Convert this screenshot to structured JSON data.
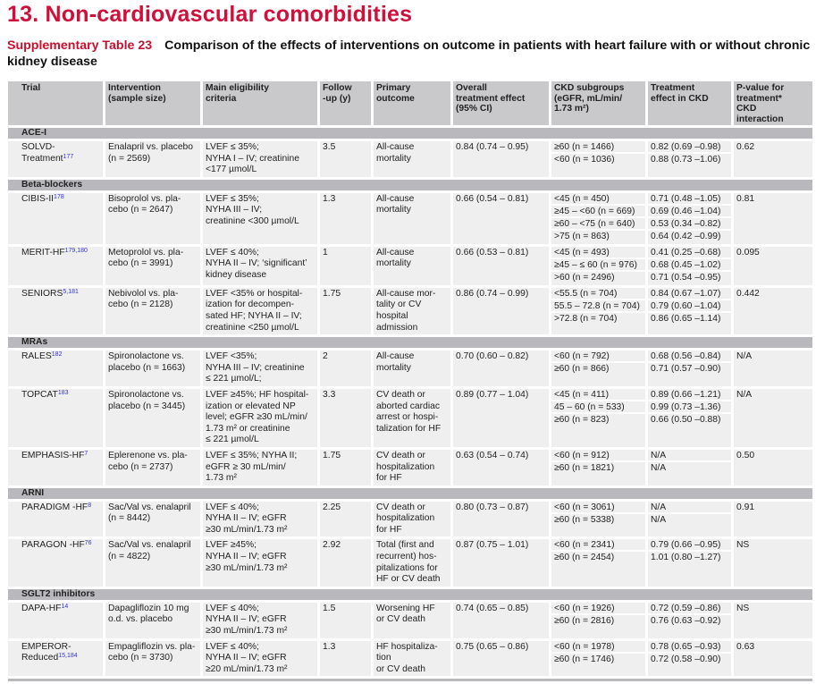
{
  "heading": "13. Non-cardiovascular comorbidities",
  "caption": {
    "label": "Supplementary Table 23",
    "text": "Comparison of the effects of interventions on outcome in patients with heart failure with or without chronic kidney disease"
  },
  "columns": [
    "Trial",
    "Intervention\n(sample size)",
    "Main eligibility\ncriteria",
    "Follow\n-up (y)",
    "Primary\noutcome",
    "Overall\ntreatment effect\n(95% CI)",
    "CKD subgroups\n(eGFR, mL/min/\n1.73 m²)",
    "Treatment\neffect in CKD",
    "P-value for\ntreatment*\nCKD\ninteraction"
  ],
  "sections": [
    {
      "name": "ACE-I",
      "rows": [
        {
          "trial": "SOLVD-\nTreatment",
          "ref": "177",
          "intervention": "Enalapril vs. placebo\n(n = 2569)",
          "criteria": "LVEF ≤ 35%;\nNYHA I – IV; creatinine\n<177 µmol/L",
          "followup": "3.5",
          "outcome": "All-cause\nmortality",
          "overall": "0.84 (0.74 – 0.95)",
          "subgroups": [
            "≥60 (n = 1466)",
            "<60 (n = 1036)"
          ],
          "effects": [
            "0.82 (0.69 –0.98)",
            "0.88 (0.73 –1.06)"
          ],
          "p": "0.62"
        }
      ]
    },
    {
      "name": "Beta-blockers",
      "rows": [
        {
          "trial": "CIBIS-II",
          "ref": "178",
          "intervention": "Bisoprolol vs. pla-\ncebo (n = 2647)",
          "criteria": "LVEF ≤ 35%;\nNYHA III – IV;\ncreatinine <300 µmol/L",
          "followup": "1.3",
          "outcome": "All-cause\nmortality",
          "overall": "0.66 (0.54 – 0.81)",
          "subgroups": [
            "<45 (n = 450)",
            "≥45 – <60 (n = 669)",
            "≥60 – <75 (n = 640)",
            ">75 (n = 863)"
          ],
          "effects": [
            "0.71 (0.48 –1.05)",
            "0.69 (0.46 –1.04)",
            "0.53 (0.34 –0.82)",
            "0.64 (0.42 –0.99)"
          ],
          "p": "0.81"
        },
        {
          "trial": "MERIT-HF",
          "ref": "179,180",
          "intervention": "Metoprolol vs. pla-\ncebo (n = 3991)",
          "criteria": "LVEF ≤ 40%;\nNYHA II – IV; ‘significant’\nkidney disease",
          "followup": "1",
          "outcome": "All-cause\nmortality",
          "overall": "0.66 (0.53 – 0.81)",
          "subgroups": [
            "<45 (n = 493)",
            "≥45 – ≤ 60 (n = 976)",
            ">60 (n = 2496)"
          ],
          "effects": [
            "0.41 (0.25 –0.68)",
            "0.68 (0.45 –1.02)",
            "0.71 (0.54 –0.95)"
          ],
          "p": "0.095"
        },
        {
          "trial": "SENIORS",
          "ref": "5,181",
          "intervention": "Nebivolol vs. pla-\ncebo (n = 2128)",
          "criteria": "LVEF <35% or hospital-\nization for decompen-\nsated HF; NYHA II – IV;\ncreatinine <250 µmol/L",
          "followup": "1.75",
          "outcome": "All-cause mor-\ntality or CV\nhospital\nadmission",
          "overall": "0.86 (0.74 – 0.99)",
          "subgroups": [
            "<55.5 (n = 704)",
            "55.5 – 72.8 (n = 704)",
            ">72.8 (n = 704)"
          ],
          "effects": [
            "0.84 (0.67 –1.07)",
            "0.79 (0.60 –1.04)",
            "0.86 (0.65 –1.14)"
          ],
          "p": "0.442"
        }
      ]
    },
    {
      "name": "MRAs",
      "rows": [
        {
          "trial": "RALES",
          "ref": "182",
          "intervention": "Spironolactone vs.\nplacebo (n = 1663)",
          "criteria": "LVEF <35%;\nNYHA III – IV; creatinine\n≤ 221 µmol/L;",
          "followup": "2",
          "outcome": "All-cause\nmortality",
          "overall": "0.70 (0.60 – 0.82)",
          "subgroups": [
            "<60 (n = 792)",
            "≥60 (n = 866)"
          ],
          "effects": [
            "0.68 (0.56 –0.84)",
            "0.71 (0.57 –0.90)"
          ],
          "p": "N/A"
        },
        {
          "trial": "TOPCAT",
          "ref": "183",
          "intervention": "Spironolactone vs.\nplacebo (n = 3445)",
          "criteria": "LVEF ≥45%; HF hospital-\nization or elevated NP\nlevel; eGFR ≥30 mL/min/\n1.73 m² or creatinine\n≤ 221 µmol/L",
          "followup": "3.3",
          "outcome": "CV death or\naborted cardiac\narrest or hospi-\ntalization for HF",
          "overall": "0.89 (0.77 – 1.04)",
          "subgroups": [
            "<45 (n = 411)",
            "45 – 60 (n = 533)",
            "≥60 (n = 823)"
          ],
          "effects": [
            "0.89 (0.66 –1.21)",
            "0.99 (0.73 –1.36)",
            "0.66 (0.50 –0.88)"
          ],
          "p": "N/A"
        },
        {
          "trial": "EMPHASIS-HF",
          "ref": "7",
          "intervention": "Eplerenone vs. pla-\ncebo (n = 2737)",
          "criteria": "LVEF ≤ 35%; NYHA II;\neGFR ≥ 30 mL/min/\n1.73 m²",
          "followup": "1.75",
          "outcome": "CV death or\nhospitalization\nfor HF",
          "overall": "0.63 (0.54 – 0.74)",
          "subgroups": [
            "<60 (n = 912)",
            "≥60 (n = 1821)"
          ],
          "effects": [
            "N/A",
            "N/A"
          ],
          "p": "0.50"
        }
      ]
    },
    {
      "name": "ARNI",
      "rows": [
        {
          "trial": "PARADIGM -HF",
          "ref": "8",
          "intervention": "Sac/Val vs. enalapril\n(n = 8442)",
          "criteria": "LVEF ≤ 40%;\nNYHA II – IV; eGFR\n≥30 mL/min/1.73 m²",
          "followup": "2.25",
          "outcome": "CV death or\nhospitalization\nfor HF",
          "overall": "0.80 (0.73 – 0.87)",
          "subgroups": [
            "<60 (n = 3061)",
            "≥60 (n = 5338)"
          ],
          "effects": [
            "N/A",
            "N/A"
          ],
          "p": "0.91"
        },
        {
          "trial": "PARAGON -HF",
          "ref": "76",
          "intervention": "Sac/Val vs. enalapril\n(n = 4822)",
          "criteria": "LVEF ≥45%;\nNYHA II – IV; eGFR\n≥30 mL/min/1.73 m²",
          "followup": "2.92",
          "outcome": "Total (first and\nrecurrent) hos-\npitalizations for\nHF or CV death",
          "overall": "0.87 (0.75 – 1.01)",
          "subgroups": [
            "<60 (n = 2341)",
            "≥60 (n = 2454)"
          ],
          "effects": [
            "0.79 (0.66 –0.95)",
            "1.01 (0.80 –1.27)"
          ],
          "p": "NS"
        }
      ]
    },
    {
      "name": "SGLT2 inhibitors",
      "rows": [
        {
          "trial": "DAPA-HF",
          "ref": "14",
          "intervention": "Dapagliflozin 10 mg\no.d. vs. placebo",
          "criteria": "LVEF ≤ 40%;\nNYHA II – IV; eGFR\n≥30 mL/min/1.73 m²",
          "followup": "1.5",
          "outcome": "Worsening HF\nor CV death",
          "overall": "0.74 (0.65 – 0.85)",
          "subgroups": [
            "<60 (n = 1926)",
            "≥60 (n = 2816)"
          ],
          "effects": [
            "0.72 (0.59 –0.86)",
            "0.76 (0.63 –0.92)"
          ],
          "p": "NS"
        },
        {
          "trial": "EMPEROR-\nReduced",
          "ref": "15,184",
          "intervention": "Empagliflozin vs. pla-\ncebo (n = 3730)",
          "criteria": "LVEF ≤ 40%;\nNYHA II – IV; eGFR\n≥20 mL/min/1.73 m²",
          "followup": "1.3",
          "outcome": "HF hospitaliza-\ntion\nor CV death",
          "overall": "0.75 (0.65 – 0.86)",
          "subgroups": [
            "<60 (n = 1978)",
            "≥60 (n = 1746)"
          ],
          "effects": [
            "0.78 (0.65 –0.93)",
            "0.72 (0.58 –0.90)"
          ],
          "p": "0.63"
        }
      ]
    }
  ]
}
